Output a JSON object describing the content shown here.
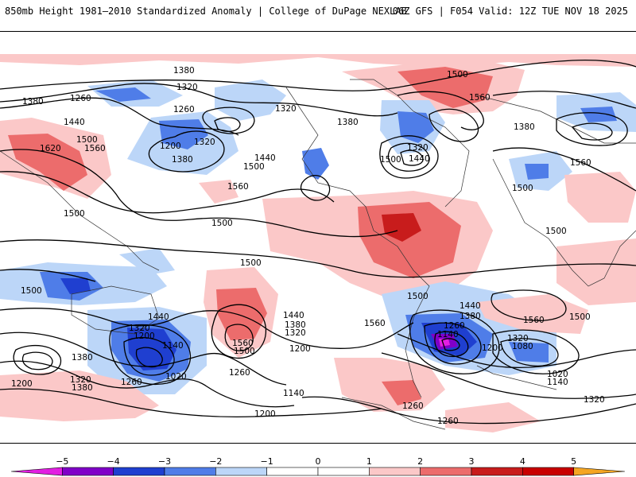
{
  "header": {
    "title": "850mb Height 1981–2010 Standardized Anomaly | College of DuPage NEXLAB",
    "run_info": "06Z GFS | F054 Valid: 12Z TUE NOV 18 2025"
  },
  "colors": {
    "neg5": "#e21fe2",
    "neg4": "#8000c8",
    "neg3": "#1f3fd0",
    "neg2": "#4f7de8",
    "neg1": "#bcd6f8",
    "zero": "#ffffff",
    "pos1": "#fbc8c8",
    "pos2": "#ec6c6c",
    "pos3": "#c81c1c",
    "pos4": "#c80000",
    "pos5": "#f5a623",
    "contour": "#000000"
  },
  "colorbar": {
    "ticks": [
      "−5",
      "−4",
      "−3",
      "−2",
      "−1",
      "0",
      "1",
      "2",
      "3",
      "4",
      "5"
    ]
  },
  "contour_labels": [
    "1380",
    "1320",
    "1260",
    "1440",
    "1500",
    "1620",
    "1560",
    "1380",
    "1320",
    "1260",
    "1200",
    "1380",
    "1320",
    "1500",
    "1440",
    "1500",
    "1560",
    "1380",
    "1320",
    "1440",
    "1500",
    "1560",
    "1380",
    "1500",
    "1560",
    "1500",
    "1500",
    "1500",
    "1500",
    "1500",
    "1440",
    "1320",
    "1200",
    "1140",
    "1020",
    "1380",
    "1320",
    "1380",
    "1200",
    "1260",
    "1440",
    "1560",
    "1500",
    "1380",
    "1320",
    "1200",
    "1260",
    "1140",
    "1200",
    "1560",
    "1500",
    "1440",
    "1380",
    "1260",
    "1140",
    "1320",
    "1200",
    "1080",
    "1020",
    "1140",
    "1320",
    "1560",
    "1500",
    "1260",
    "1260"
  ],
  "map": {
    "anomaly_unit": "standard deviations",
    "height_unit": "m",
    "contour_interval": 60
  }
}
